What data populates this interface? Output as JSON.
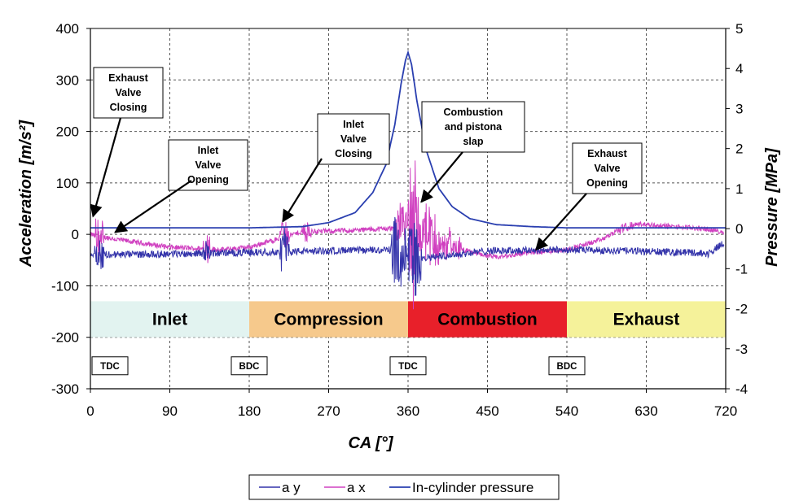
{
  "chart_data": {
    "type": "line",
    "xlabel": "CA [°]",
    "ylabel_left": "Acceleration [m/s²]",
    "ylabel_right": "Pressure [MPa]",
    "xlim": [
      0,
      720
    ],
    "ylim_left": [
      -300,
      400
    ],
    "ylim_right": [
      -4,
      5
    ],
    "x_ticks": [
      "0",
      "90",
      "180",
      "270",
      "360",
      "450",
      "540",
      "630",
      "720"
    ],
    "y_left_ticks": [
      "-300",
      "-200",
      "-100",
      "0",
      "100",
      "200",
      "300",
      "400"
    ],
    "y_right_ticks": [
      "-4",
      "-3",
      "-2",
      "-1",
      "0",
      "1",
      "2",
      "3",
      "4",
      "5"
    ],
    "grid": true,
    "legend_position": "bottom",
    "series": [
      {
        "name": "a y",
        "color": "#3333aa",
        "axis": "left",
        "approx_baseline": [
          [
            0,
            -40
          ],
          [
            90,
            -38
          ],
          [
            180,
            -35
          ],
          [
            270,
            -32
          ],
          [
            345,
            -30
          ],
          [
            360,
            -40
          ],
          [
            380,
            -45
          ],
          [
            420,
            -38
          ],
          [
            450,
            -32
          ],
          [
            540,
            -30
          ],
          [
            600,
            -32
          ],
          [
            680,
            -35
          ],
          [
            700,
            -38
          ],
          [
            715,
            -20
          ]
        ],
        "bursts": [
          [
            5,
            15,
            45
          ],
          [
            128,
            135,
            40
          ],
          [
            215,
            225,
            55
          ],
          [
            340,
            358,
            95
          ],
          [
            360,
            375,
            110
          ]
        ]
      },
      {
        "name": "a x",
        "color": "#d040c0",
        "axis": "left",
        "approx_baseline": [
          [
            0,
            0
          ],
          [
            30,
            -10
          ],
          [
            90,
            -25
          ],
          [
            150,
            -30
          ],
          [
            180,
            -25
          ],
          [
            210,
            -10
          ],
          [
            240,
            5
          ],
          [
            300,
            8
          ],
          [
            345,
            12
          ],
          [
            360,
            15
          ],
          [
            380,
            -10
          ],
          [
            420,
            -30
          ],
          [
            460,
            -45
          ],
          [
            500,
            -35
          ],
          [
            540,
            -30
          ],
          [
            580,
            -10
          ],
          [
            600,
            10
          ],
          [
            620,
            20
          ],
          [
            660,
            15
          ],
          [
            700,
            10
          ],
          [
            715,
            5
          ]
        ],
        "bursts": [
          [
            5,
            15,
            60
          ],
          [
            128,
            135,
            45
          ],
          [
            215,
            225,
            40
          ],
          [
            240,
            250,
            25
          ],
          [
            345,
            358,
            55
          ],
          [
            360,
            372,
            180
          ],
          [
            372,
            395,
            90
          ],
          [
            395,
            420,
            40
          ],
          [
            600,
            615,
            15
          ]
        ]
      },
      {
        "name": "In-cylinder pressure",
        "color": "#2a3fb0",
        "axis": "right",
        "points": [
          [
            0,
            0.02
          ],
          [
            180,
            0.02
          ],
          [
            240,
            0.05
          ],
          [
            270,
            0.15
          ],
          [
            300,
            0.4
          ],
          [
            320,
            0.9
          ],
          [
            335,
            1.6
          ],
          [
            345,
            2.6
          ],
          [
            352,
            3.6
          ],
          [
            357,
            4.2
          ],
          [
            360,
            4.4
          ],
          [
            364,
            4.1
          ],
          [
            370,
            3.2
          ],
          [
            380,
            2.0
          ],
          [
            395,
            1.0
          ],
          [
            410,
            0.55
          ],
          [
            430,
            0.25
          ],
          [
            460,
            0.1
          ],
          [
            500,
            0.05
          ],
          [
            540,
            0.02
          ],
          [
            720,
            0.02
          ]
        ]
      }
    ],
    "phases": [
      {
        "label": "Inlet",
        "from": 0,
        "to": 180,
        "color": "#e2f3f0"
      },
      {
        "label": "Compression",
        "from": 180,
        "to": 360,
        "color": "#f6c98c"
      },
      {
        "label": "Combustion",
        "from": 360,
        "to": 540,
        "color": "#e8202a"
      },
      {
        "label": "Exhaust",
        "from": 540,
        "to": 720,
        "color": "#f5f29a"
      }
    ],
    "dead_centers": [
      {
        "label": "TDC",
        "x": 0
      },
      {
        "label": "BDC",
        "x": 180
      },
      {
        "label": "TDC",
        "x": 360
      },
      {
        "label": "BDC",
        "x": 540
      }
    ],
    "annotations": [
      {
        "lines": [
          "Exhaust",
          "Valve",
          "Closing"
        ],
        "target_x": 3,
        "target_y": 35
      },
      {
        "lines": [
          "Inlet",
          "Valve",
          "Opening"
        ],
        "target_x": 28,
        "target_y": 4
      },
      {
        "lines": [
          "Inlet",
          "Valve",
          "Closing"
        ],
        "target_x": 218,
        "target_y": 25
      },
      {
        "lines": [
          "Combustion",
          "and pistona",
          "slap"
        ],
        "target_x": 375,
        "target_y": 63
      },
      {
        "lines": [
          "Exhaust",
          "Valve",
          "Opening"
        ],
        "target_x": 505,
        "target_y": -30
      }
    ]
  }
}
